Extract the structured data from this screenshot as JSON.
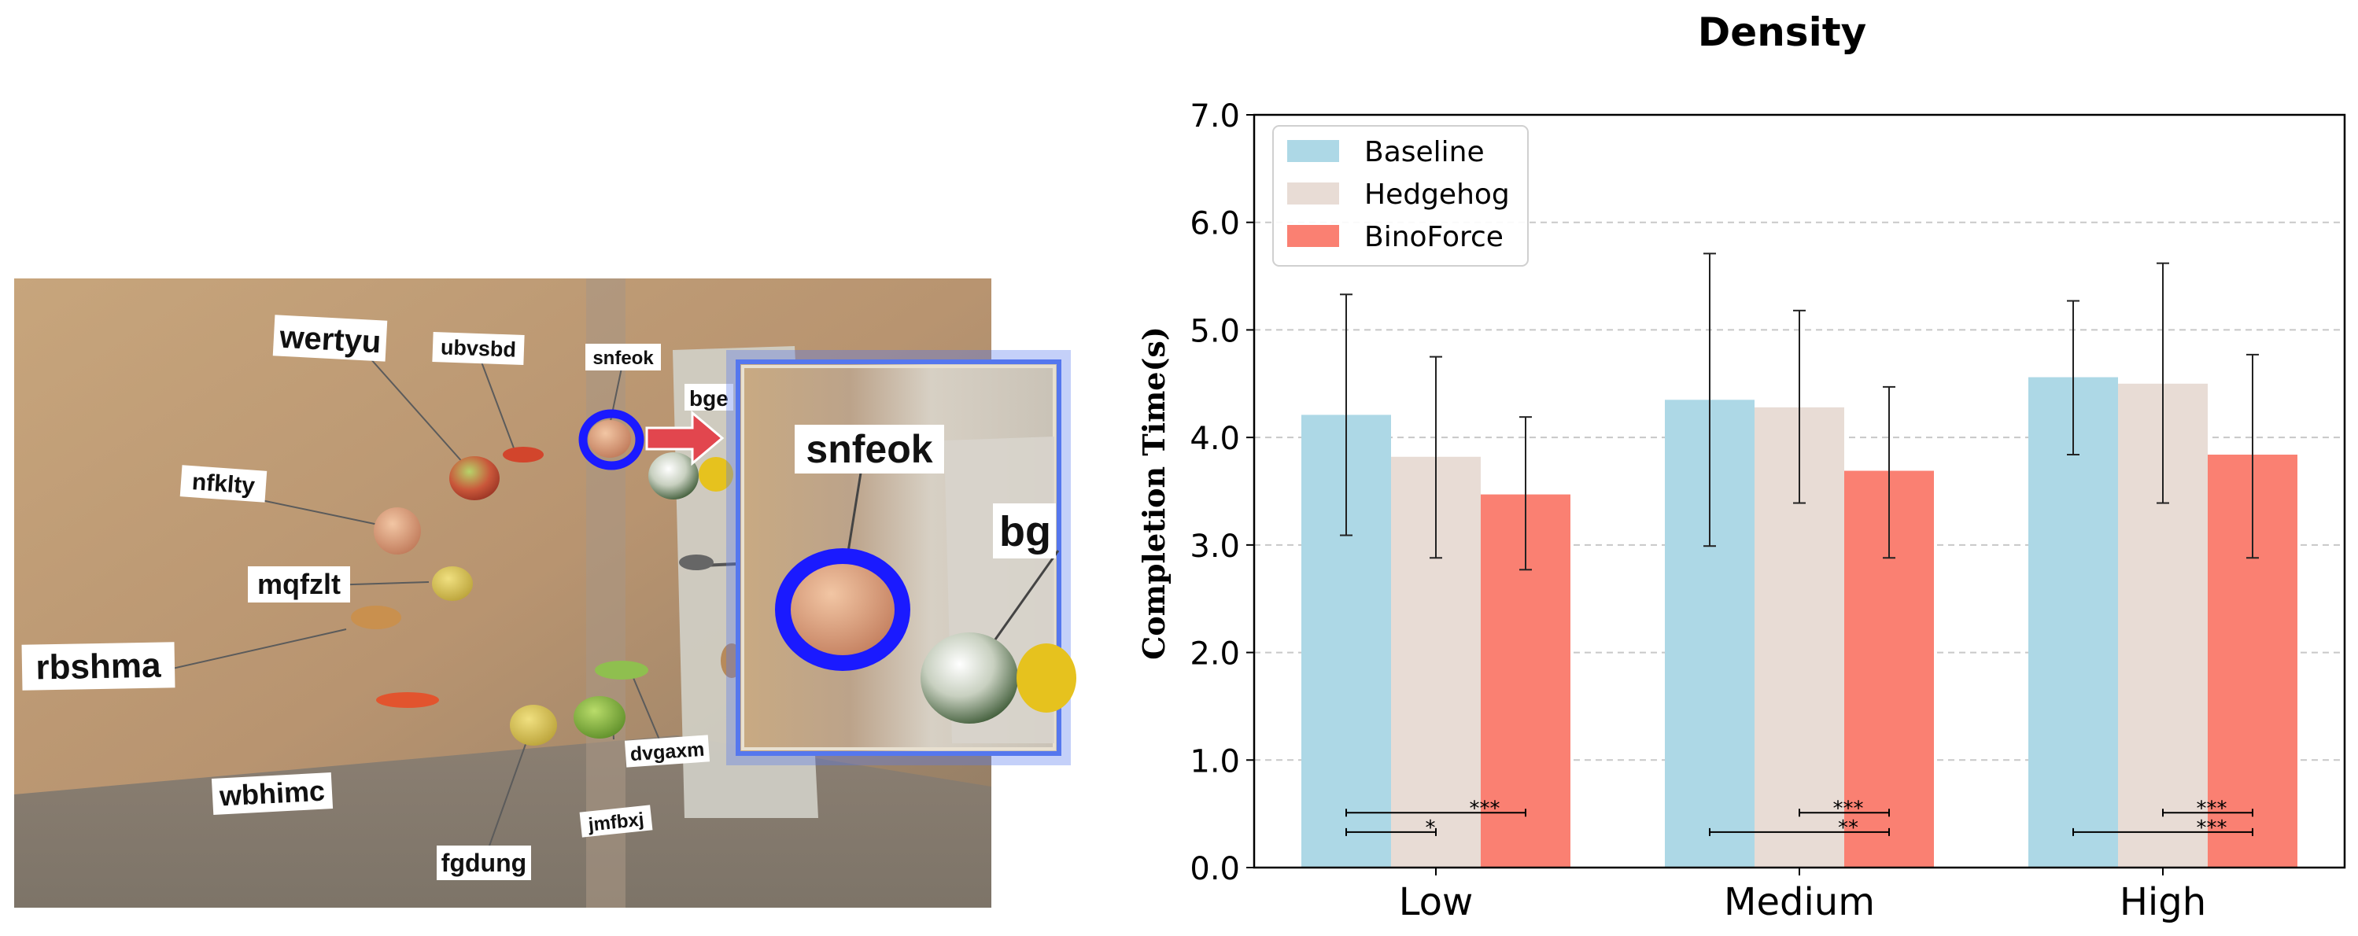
{
  "scene": {
    "labels": {
      "wertyu": "wertyu",
      "ubvsbd": "ubvsbd",
      "snfeok": "snfeok",
      "bge": "bge",
      "nfklty": "nfklty",
      "mqfzlt": "mqfzlt",
      "rbshma": "rbshma",
      "wbhimc": "wbhimc",
      "dvgaxm": "dvgaxm",
      "jmfbxj": "jmfbxj",
      "fgdung": "fgdung",
      "zoom_snfeok": "snfeok",
      "zoom_bg": "bg"
    },
    "colors": {
      "highlight": "#1a1aff",
      "arrow": "#e2464e",
      "zoom_border": "#5577ee"
    }
  },
  "chart_data": {
    "type": "bar",
    "title": "Density",
    "xlabel": "",
    "ylabel": "Completion Time(s)",
    "ylim": [
      0,
      7
    ],
    "yticks": [
      "0.0",
      "1.0",
      "2.0",
      "3.0",
      "4.0",
      "5.0",
      "6.0",
      "7.0"
    ],
    "grid": true,
    "legend_position": "top-left",
    "categories": [
      "Low",
      "Medium",
      "High"
    ],
    "series": [
      {
        "name": "Baseline",
        "color": "#add8e6",
        "values": [
          4.21,
          4.35,
          4.56
        ],
        "err_low": [
          3.09,
          2.99,
          3.84
        ],
        "err_high": [
          5.33,
          5.71,
          5.27
        ]
      },
      {
        "name": "Hedgehog",
        "color": "#e8dcd5",
        "values": [
          3.82,
          4.28,
          4.5
        ],
        "err_low": [
          2.88,
          3.39,
          3.39
        ],
        "err_high": [
          4.75,
          5.18,
          5.62
        ]
      },
      {
        "name": "BinoForce",
        "color": "#fa8072",
        "values": [
          3.47,
          3.69,
          3.84
        ],
        "err_low": [
          2.77,
          2.88,
          2.88
        ],
        "err_high": [
          4.19,
          4.47,
          4.77
        ]
      }
    ],
    "significance": [
      {
        "group": 0,
        "from": 0,
        "to": 2,
        "label": "***",
        "level": 0.51
      },
      {
        "group": 0,
        "from": 0,
        "to": 1,
        "label": "*",
        "level": 0.33
      },
      {
        "group": 1,
        "from": 1,
        "to": 2,
        "label": "***",
        "level": 0.51
      },
      {
        "group": 1,
        "from": 0,
        "to": 2,
        "label": "**",
        "level": 0.33
      },
      {
        "group": 2,
        "from": 1,
        "to": 2,
        "label": "***",
        "level": 0.51
      },
      {
        "group": 2,
        "from": 0,
        "to": 2,
        "label": "***",
        "level": 0.33
      }
    ]
  }
}
